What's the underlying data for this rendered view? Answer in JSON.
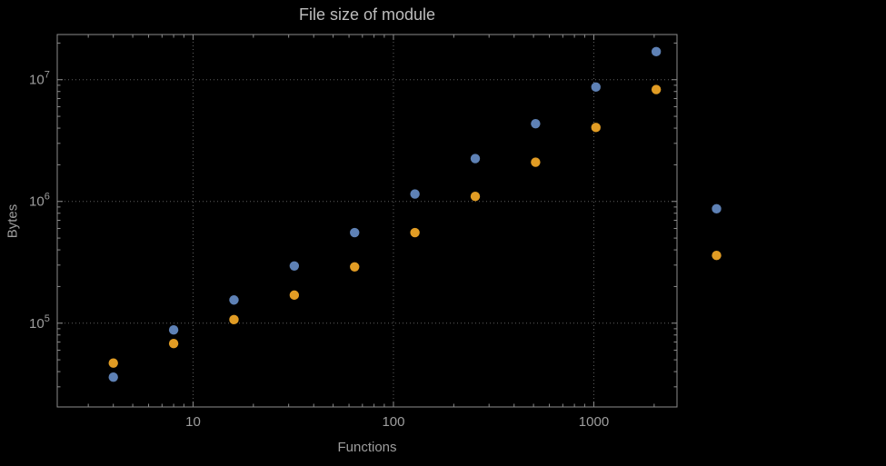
{
  "chart_data": {
    "type": "scatter",
    "title": "File size of module",
    "xlabel": "Functions",
    "ylabel": "Bytes",
    "x_scale": "log",
    "y_scale": "log",
    "xlim": [
      2.1,
      2600
    ],
    "ylim": [
      20500,
      23500000
    ],
    "grid": true,
    "legend": "none",
    "x_major_ticks": [
      10,
      100,
      1000
    ],
    "x_tick_labels": [
      "10",
      "100",
      "1000"
    ],
    "y_major_ticks": [
      100000,
      1000000,
      10000000
    ],
    "y_tick_labels": [
      {
        "base": "10",
        "exp": "5"
      },
      {
        "base": "10",
        "exp": "6"
      },
      {
        "base": "10",
        "exp": "7"
      }
    ],
    "series": [
      {
        "name": "series-blue",
        "color": "#5e81b5",
        "x": [
          4,
          8,
          16,
          32,
          64,
          128,
          256,
          512,
          1024,
          2048,
          4096
        ],
        "y": [
          36000,
          88000,
          155000,
          295000,
          555000,
          1150000,
          2250000,
          4350000,
          8700000,
          17000000,
          870000
        ]
      },
      {
        "name": "series-orange",
        "color": "#e19c24",
        "x": [
          4,
          8,
          16,
          32,
          64,
          128,
          256,
          512,
          1024,
          2048,
          4096
        ],
        "y": [
          47000,
          68000,
          107000,
          170000,
          290000,
          555000,
          1100000,
          2100000,
          4050000,
          8300000,
          360000
        ]
      }
    ]
  },
  "colors": {
    "background": "#000000",
    "frame": "#8c8c8c",
    "grid": "#5f5f5f",
    "tick_label": "#9e9e9e",
    "title": "#bdbdbd",
    "axis_label": "#9e9e9e"
  }
}
